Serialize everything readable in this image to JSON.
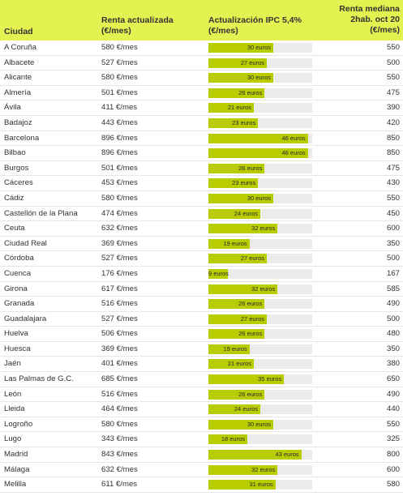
{
  "header": {
    "ciudad": "Ciudad",
    "renta_line1": "Renta actualizada",
    "renta_line2": "(€/mes)",
    "ipc_line1": "Actualización IPC 5,4%",
    "ipc_line2": "(€/mes)",
    "mediana_line1": "Renta mediana",
    "mediana_line2": "2hab. oct 20",
    "mediana_line3": "(€/mes)"
  },
  "ipc_max": 48,
  "rows": [
    {
      "city": "A Coruña",
      "rent": "580 €/mes",
      "ipc": 30,
      "ipc_label": "30 euros",
      "median": "550"
    },
    {
      "city": "Albacete",
      "rent": "527 €/mes",
      "ipc": 27,
      "ipc_label": "27 euros",
      "median": "500"
    },
    {
      "city": "Alicante",
      "rent": "580 €/mes",
      "ipc": 30,
      "ipc_label": "30 euros",
      "median": "550"
    },
    {
      "city": "Almería",
      "rent": "501 €/mes",
      "ipc": 26,
      "ipc_label": "26 euros",
      "median": "475"
    },
    {
      "city": "Ávila",
      "rent": "411 €/mes",
      "ipc": 21,
      "ipc_label": "21 euros",
      "median": "390"
    },
    {
      "city": "Badajoz",
      "rent": "443 €/mes",
      "ipc": 23,
      "ipc_label": "23 euros",
      "median": "420"
    },
    {
      "city": "Barcelona",
      "rent": "896 €/mes",
      "ipc": 46,
      "ipc_label": "46 euros",
      "median": "850"
    },
    {
      "city": "Bilbao",
      "rent": "896 €/mes",
      "ipc": 46,
      "ipc_label": "46 euros",
      "median": "850"
    },
    {
      "city": "Burgos",
      "rent": "501 €/mes",
      "ipc": 26,
      "ipc_label": "26 euros",
      "median": "475"
    },
    {
      "city": "Cáceres",
      "rent": "453 €/mes",
      "ipc": 23,
      "ipc_label": "23 euros",
      "median": "430"
    },
    {
      "city": "Cádiz",
      "rent": "580 €/mes",
      "ipc": 30,
      "ipc_label": "30 euros",
      "median": "550"
    },
    {
      "city": "Castellón de la Plana",
      "rent": "474 €/mes",
      "ipc": 24,
      "ipc_label": "24 euros",
      "median": "450"
    },
    {
      "city": "Ceuta",
      "rent": "632 €/mes",
      "ipc": 32,
      "ipc_label": "32 euros",
      "median": "600"
    },
    {
      "city": "Ciudad Real",
      "rent": "369 €/mes",
      "ipc": 19,
      "ipc_label": "19 euros",
      "median": "350"
    },
    {
      "city": "Córdoba",
      "rent": "527 €/mes",
      "ipc": 27,
      "ipc_label": "27 euros",
      "median": "500"
    },
    {
      "city": "Cuenca",
      "rent": "176 €/mes",
      "ipc": 9,
      "ipc_label": "9 euros",
      "median": "167"
    },
    {
      "city": "Girona",
      "rent": "617 €/mes",
      "ipc": 32,
      "ipc_label": "32 euros",
      "median": "585"
    },
    {
      "city": "Granada",
      "rent": "516 €/mes",
      "ipc": 26,
      "ipc_label": "26 euros",
      "median": "490"
    },
    {
      "city": "Guadalajara",
      "rent": "527 €/mes",
      "ipc": 27,
      "ipc_label": "27 euros",
      "median": "500"
    },
    {
      "city": "Huelva",
      "rent": "506 €/mes",
      "ipc": 26,
      "ipc_label": "26 euros",
      "median": "480"
    },
    {
      "city": "Huesca",
      "rent": "369 €/mes",
      "ipc": 19,
      "ipc_label": "19 euros",
      "median": "350"
    },
    {
      "city": "Jaén",
      "rent": "401 €/mes",
      "ipc": 21,
      "ipc_label": "21 euros",
      "median": "380"
    },
    {
      "city": "Las Palmas de G.C.",
      "rent": "685 €/mes",
      "ipc": 35,
      "ipc_label": "35 euros",
      "median": "650"
    },
    {
      "city": "León",
      "rent": "516 €/mes",
      "ipc": 26,
      "ipc_label": "26 euros",
      "median": "490"
    },
    {
      "city": "Lleida",
      "rent": "464 €/mes",
      "ipc": 24,
      "ipc_label": "24 euros",
      "median": "440"
    },
    {
      "city": "Logroño",
      "rent": "580 €/mes",
      "ipc": 30,
      "ipc_label": "30 euros",
      "median": "550"
    },
    {
      "city": "Lugo",
      "rent": "343 €/mes",
      "ipc": 18,
      "ipc_label": "18 euros",
      "median": "325"
    },
    {
      "city": "Madrid",
      "rent": "843 €/mes",
      "ipc": 43,
      "ipc_label": "43 euros",
      "median": "800"
    },
    {
      "city": "Málaga",
      "rent": "632 €/mes",
      "ipc": 32,
      "ipc_label": "32 euros",
      "median": "600"
    },
    {
      "city": "Melilla",
      "rent": "611 €/mes",
      "ipc": 31,
      "ipc_label": "31 euros",
      "median": "580"
    }
  ]
}
